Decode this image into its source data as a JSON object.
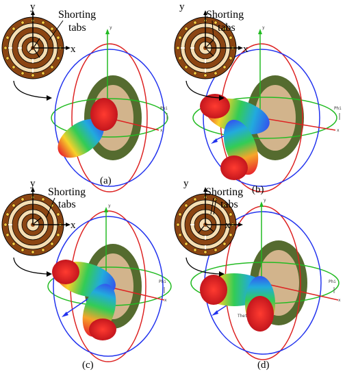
{
  "panels": [
    {
      "caption": "(a)"
    },
    {
      "caption": "(b)"
    },
    {
      "caption": "(c)"
    },
    {
      "caption": "(d)"
    }
  ],
  "labels": {
    "y": "y",
    "x": "x",
    "shorting_line1": "Shorting",
    "shorting_line2": "tabs",
    "phi": "Phi",
    "theta": "Theta",
    "axis_y": "y",
    "axis_x": "x"
  },
  "colors": {
    "ring_brown": "#8B4513",
    "ring_light": "#F5DEB3",
    "axis_green": "#22bb22",
    "axis_red": "#dd2222",
    "axis_blue": "#2233ee",
    "patch_green": "#556B2F",
    "patch_inner": "#D2B48C"
  },
  "icons": [
    "antenna-ring-icon",
    "pointer-arrow-icon"
  ]
}
